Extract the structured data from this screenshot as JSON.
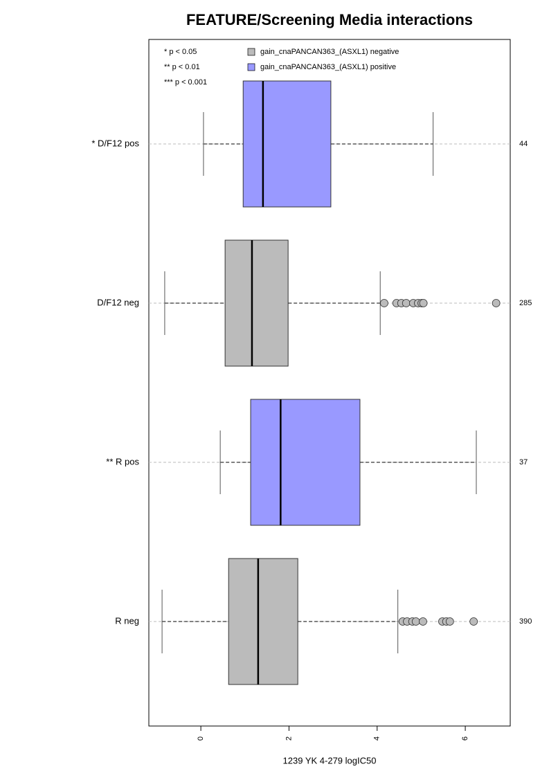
{
  "chart_data": {
    "type": "boxplot",
    "title": "FEATURE/Screening Media interactions",
    "xlabel": "1239 YK 4-279 logIC50",
    "categories": [
      "* D/F12 pos",
      "D/F12 neg",
      "** R pos",
      "R neg"
    ],
    "counts": [
      44,
      285,
      37,
      390
    ],
    "notes": [
      "* p < 0.05",
      "** p < 0.01",
      "*** p < 0.001"
    ],
    "legend": [
      {
        "name": "gain_cnaPANCAN363_(ASXL1) negative",
        "color": "#bbbbbb"
      },
      {
        "name": "gain_cnaPANCAN363_(ASXL1) positive",
        "color": "#9999ff"
      }
    ],
    "boxes": [
      {
        "color": "#9999ff",
        "whislo": 0.06,
        "q1": 0.96,
        "med": 1.41,
        "q3": 2.95,
        "whishi": 5.27,
        "outliers": []
      },
      {
        "color": "#bbbbbb",
        "whislo": -0.82,
        "q1": 0.55,
        "med": 1.16,
        "q3": 1.98,
        "whishi": 4.07,
        "outliers": [
          4.16,
          4.44,
          4.55,
          4.66,
          4.82,
          4.93,
          5.01,
          5.05,
          6.7
        ]
      },
      {
        "color": "#9999ff",
        "whislo": 0.44,
        "q1": 1.13,
        "med": 1.81,
        "q3": 3.61,
        "whishi": 6.25,
        "outliers": []
      },
      {
        "color": "#bbbbbb",
        "whislo": -0.88,
        "q1": 0.63,
        "med": 1.3,
        "q3": 2.2,
        "whishi": 4.47,
        "outliers": [
          4.58,
          4.68,
          4.8,
          4.88,
          5.04,
          5.48,
          5.57,
          5.65,
          6.19
        ]
      }
    ],
    "xlim": [
      -1.18,
      7.02
    ],
    "xticks": [
      0,
      2,
      4,
      6
    ],
    "grid": true
  }
}
